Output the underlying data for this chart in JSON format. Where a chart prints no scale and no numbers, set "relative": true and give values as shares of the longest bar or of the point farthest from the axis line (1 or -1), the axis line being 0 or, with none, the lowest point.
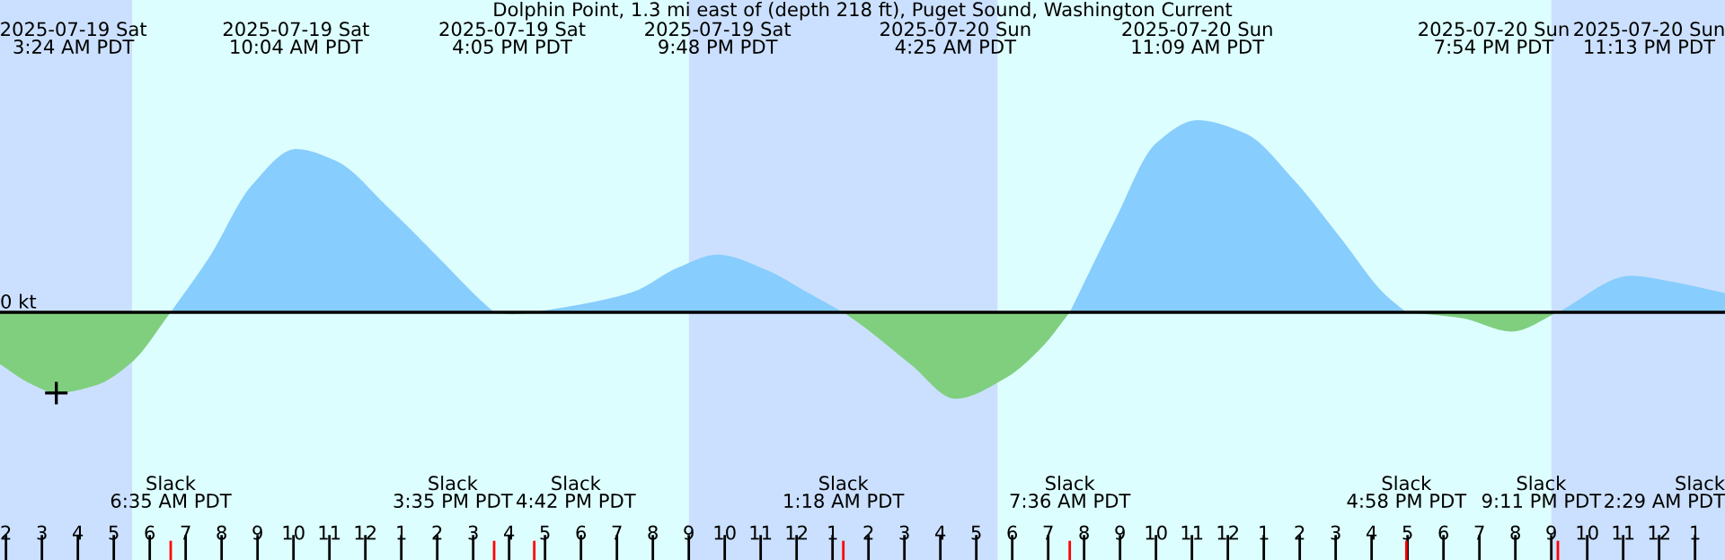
{
  "chart_data": {
    "type": "area",
    "title": "Dolphin Point, 1.3 mi east of (depth 218 ft), Puget Sound, Washington Current",
    "relative": true,
    "grid": false,
    "x": [
      "2025-07-19T01:50",
      "2025-07-19T02:40",
      "2025-07-19T03:24",
      "2025-07-19T04:30",
      "2025-07-19T05:30",
      "2025-07-19T06:35",
      "2025-07-19T07:40",
      "2025-07-19T08:50",
      "2025-07-19T10:04",
      "2025-07-19T11:10",
      "2025-07-19T12:40",
      "2025-07-19T14:10",
      "2025-07-19T15:10",
      "2025-07-19T15:35",
      "2025-07-19T16:05",
      "2025-07-19T16:42",
      "2025-07-19T18:30",
      "2025-07-19T19:30",
      "2025-07-19T20:40",
      "2025-07-19T21:48",
      "2025-07-19T23:10",
      "2025-07-20T00:20",
      "2025-07-20T01:18",
      "2025-07-20T01:50",
      "2025-07-20T03:10",
      "2025-07-20T04:25",
      "2025-07-20T05:50",
      "2025-07-20T06:50",
      "2025-07-20T07:36",
      "2025-07-20T08:50",
      "2025-07-20T10:00",
      "2025-07-20T11:09",
      "2025-07-20T12:30",
      "2025-07-20T13:50",
      "2025-07-20T15:10",
      "2025-07-20T16:20",
      "2025-07-20T16:58",
      "2025-07-20T18:30",
      "2025-07-20T19:54",
      "2025-07-20T21:11",
      "2025-07-20T23:13",
      "2025-07-21T00:20",
      "2025-07-21T01:50"
    ],
    "series": [
      {
        "color": "#87cdfd",
        "values": [
          null,
          null,
          null,
          null,
          null,
          0,
          0.29,
          0.66,
          0.85,
          0.79,
          0.54,
          0.26,
          0.07,
          0,
          null,
          0,
          0.06,
          0.11,
          0.23,
          0.3,
          0.22,
          0.1,
          0,
          null,
          null,
          null,
          null,
          null,
          0,
          0.47,
          0.88,
          1.0,
          0.93,
          0.69,
          0.38,
          0.1,
          0,
          null,
          null,
          0,
          0.19,
          0.16,
          0.1
        ]
      },
      {
        "color": "#7fcf7f",
        "values": [
          -0.27,
          -0.37,
          -0.42,
          -0.38,
          -0.26,
          0,
          null,
          null,
          null,
          null,
          null,
          null,
          null,
          0,
          -0.01,
          0,
          null,
          null,
          null,
          null,
          null,
          null,
          0,
          -0.07,
          -0.27,
          -0.45,
          -0.34,
          -0.18,
          0,
          null,
          null,
          null,
          null,
          null,
          null,
          null,
          0,
          -0.03,
          -0.1,
          0,
          null,
          null,
          null
        ]
      },
      {
        "type": "scatter",
        "marker": "cross",
        "color": "#000000",
        "x": [
          "2025-07-19T03:24"
        ],
        "values": [
          -0.42
        ]
      }
    ],
    "xlim": [
      "2025-07-19T01:50",
      "2025-07-21T01:50"
    ],
    "xticks": [
      {
        "value": "2025-07-19T02:00",
        "label": "2"
      },
      {
        "value": "2025-07-19T03:00",
        "label": "3"
      },
      {
        "value": "2025-07-19T04:00",
        "label": "4"
      },
      {
        "value": "2025-07-19T05:00",
        "label": "5"
      },
      {
        "value": "2025-07-19T06:00",
        "label": "6"
      },
      {
        "value": "2025-07-19T07:00",
        "label": "7"
      },
      {
        "value": "2025-07-19T08:00",
        "label": "8"
      },
      {
        "value": "2025-07-19T09:00",
        "label": "9"
      },
      {
        "value": "2025-07-19T10:00",
        "label": "10"
      },
      {
        "value": "2025-07-19T11:00",
        "label": "11"
      },
      {
        "value": "2025-07-19T12:00",
        "label": "12"
      },
      {
        "value": "2025-07-19T13:00",
        "label": "1"
      },
      {
        "value": "2025-07-19T14:00",
        "label": "2"
      },
      {
        "value": "2025-07-19T15:00",
        "label": "3"
      },
      {
        "value": "2025-07-19T16:00",
        "label": "4"
      },
      {
        "value": "2025-07-19T17:00",
        "label": "5"
      },
      {
        "value": "2025-07-19T18:00",
        "label": "6"
      },
      {
        "value": "2025-07-19T19:00",
        "label": "7"
      },
      {
        "value": "2025-07-19T20:00",
        "label": "8"
      },
      {
        "value": "2025-07-19T21:00",
        "label": "9"
      },
      {
        "value": "2025-07-19T22:00",
        "label": "10"
      },
      {
        "value": "2025-07-19T23:00",
        "label": "11"
      },
      {
        "value": "2025-07-20T00:00",
        "label": "12"
      },
      {
        "value": "2025-07-20T01:00",
        "label": "1"
      },
      {
        "value": "2025-07-20T02:00",
        "label": "2"
      },
      {
        "value": "2025-07-20T03:00",
        "label": "3"
      },
      {
        "value": "2025-07-20T04:00",
        "label": "4"
      },
      {
        "value": "2025-07-20T05:00",
        "label": "5"
      },
      {
        "value": "2025-07-20T06:00",
        "label": "6"
      },
      {
        "value": "2025-07-20T07:00",
        "label": "7"
      },
      {
        "value": "2025-07-20T08:00",
        "label": "8"
      },
      {
        "value": "2025-07-20T09:00",
        "label": "9"
      },
      {
        "value": "2025-07-20T10:00",
        "label": "10"
      },
      {
        "value": "2025-07-20T11:00",
        "label": "11"
      },
      {
        "value": "2025-07-20T12:00",
        "label": "12"
      },
      {
        "value": "2025-07-20T13:00",
        "label": "1"
      },
      {
        "value": "2025-07-20T14:00",
        "label": "2"
      },
      {
        "value": "2025-07-20T15:00",
        "label": "3"
      },
      {
        "value": "2025-07-20T16:00",
        "label": "4"
      },
      {
        "value": "2025-07-20T17:00",
        "label": "5"
      },
      {
        "value": "2025-07-20T18:00",
        "label": "6"
      },
      {
        "value": "2025-07-20T19:00",
        "label": "7"
      },
      {
        "value": "2025-07-20T20:00",
        "label": "8"
      },
      {
        "value": "2025-07-20T21:00",
        "label": "9"
      },
      {
        "value": "2025-07-20T22:00",
        "label": "10"
      },
      {
        "value": "2025-07-20T23:00",
        "label": "11"
      },
      {
        "value": "2025-07-21T00:00",
        "label": "12"
      },
      {
        "value": "2025-07-21T01:00",
        "label": "1"
      }
    ],
    "ref_lines": [
      {
        "axis": "y",
        "value": 0,
        "label": "0 kt",
        "color": "#000000"
      }
    ],
    "bands": [
      {
        "axis": "x",
        "from": "2025-07-19T01:50",
        "to": "2025-07-19T05:31",
        "color": "#cbe0fe"
      },
      {
        "axis": "x",
        "from": "2025-07-19T05:31",
        "to": "2025-07-19T21:00",
        "color": "#ddfefe"
      },
      {
        "axis": "x",
        "from": "2025-07-19T21:00",
        "to": "2025-07-20T05:36",
        "color": "#cbe0fe"
      },
      {
        "axis": "x",
        "from": "2025-07-20T05:36",
        "to": "2025-07-20T21:00",
        "color": "#ddfefe"
      },
      {
        "axis": "x",
        "from": "2025-07-20T21:00",
        "to": "2025-07-21T01:50",
        "color": "#cbe0fe"
      }
    ],
    "annotations": [
      "2025-07-19 Sat\n3:24 AM PDT",
      "2025-07-19 Sat\n10:04 AM PDT",
      "2025-07-19 Sat\n4:05 PM PDT",
      "2025-07-19 Sat\n9:48 PM PDT",
      "2025-07-20 Sun\n4:25 AM PDT",
      "2025-07-20 Sun\n11:09 AM PDT",
      "2025-07-20 Sun\n7:54 PM PDT",
      "2025-07-20 Sun\n11:13 PM PDT",
      "Slack\n6:35 AM PDT",
      "Slack\n3:35 PM PDT",
      "Slack\n4:42 PM PDT",
      "Slack\n1:18 AM PDT",
      "Slack\n7:36 AM PDT",
      "Slack\n4:58 PM PDT",
      "Slack\n9:11 PM PDT",
      "Slack\n2:29 AM PDT"
    ]
  }
}
